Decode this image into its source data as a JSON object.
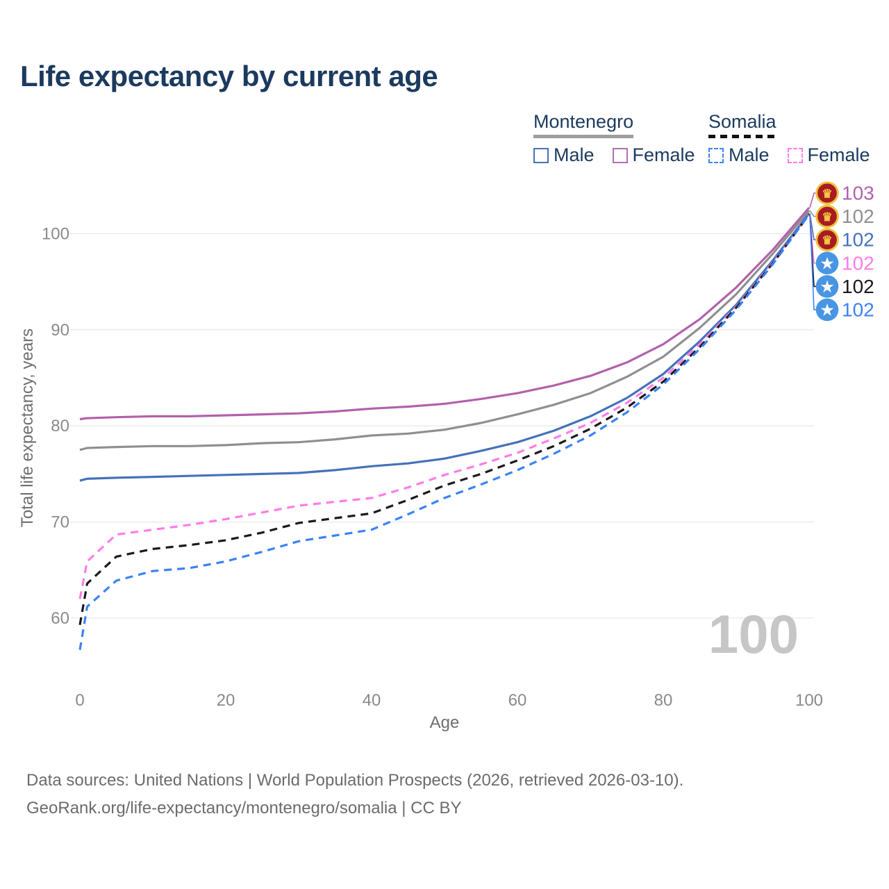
{
  "header": {
    "title": "Life expectancy by current age"
  },
  "legend": {
    "groups": [
      {
        "name": "Montenegro",
        "line_style": "solid",
        "underline_color": "#9e9e9e",
        "items": [
          {
            "label": "Male",
            "color": "#4472b8",
            "dashed": false
          },
          {
            "label": "Female",
            "color": "#b06fae",
            "dashed": false
          }
        ]
      },
      {
        "name": "Somalia",
        "line_style": "dashed",
        "underline_color": "#111111",
        "items": [
          {
            "label": "Male",
            "color": "#3b82f6",
            "dashed": true
          },
          {
            "label": "Female",
            "color": "#ff7ce8",
            "dashed": true
          }
        ]
      }
    ]
  },
  "flags": {
    "Montenegro": {
      "icon": "montenegro-flag-icon",
      "bg": "#a91b22",
      "ring": "#eec43d",
      "glyph": "♛",
      "glyph_color": "#f4c83f"
    },
    "Somalia": {
      "icon": "somalia-flag-icon",
      "bg": "#4896e3",
      "ring": "",
      "glyph": "★",
      "glyph_color": "#ffffff"
    }
  },
  "chart_data": {
    "type": "line",
    "title": "Life expectancy by current age",
    "xlabel": "Age",
    "ylabel": "Total life expectancy, years",
    "x_ticks": [
      0,
      20,
      40,
      60,
      80,
      100
    ],
    "y_ticks": [
      60,
      70,
      80,
      90,
      100
    ],
    "xlim": [
      0,
      100
    ],
    "ylim": [
      56,
      104
    ],
    "grid": "horizontal",
    "legend_position": "top-right",
    "age_counter": "100",
    "x": [
      0,
      1,
      5,
      10,
      15,
      20,
      25,
      30,
      35,
      40,
      45,
      50,
      55,
      60,
      65,
      70,
      75,
      80,
      85,
      90,
      95,
      100
    ],
    "series": [
      {
        "name": "Montenegro Female",
        "country": "Montenegro",
        "sex": "Female",
        "color": "#b261ab",
        "dashed": false,
        "end_label": "103",
        "values": [
          80.7,
          80.8,
          80.9,
          81.0,
          81.0,
          81.1,
          81.2,
          81.3,
          81.5,
          81.8,
          82.0,
          82.3,
          82.8,
          83.4,
          84.2,
          85.2,
          86.6,
          88.5,
          91.1,
          94.4,
          98.3,
          102.7
        ]
      },
      {
        "name": "Montenegro Both sexes",
        "country": "Montenegro",
        "sex": "All",
        "color": "#8f8f8f",
        "dashed": false,
        "end_label": "102",
        "values": [
          77.5,
          77.7,
          77.8,
          77.9,
          77.9,
          78.0,
          78.2,
          78.3,
          78.6,
          79.0,
          79.2,
          79.6,
          80.3,
          81.2,
          82.2,
          83.4,
          85.1,
          87.2,
          90.2,
          93.7,
          97.9,
          102.4
        ]
      },
      {
        "name": "Montenegro Male",
        "country": "Montenegro",
        "sex": "Male",
        "color": "#4472b8",
        "dashed": false,
        "end_label": "102",
        "values": [
          74.3,
          74.5,
          74.6,
          74.7,
          74.8,
          74.9,
          75.0,
          75.1,
          75.4,
          75.8,
          76.1,
          76.6,
          77.4,
          78.3,
          79.5,
          81.0,
          82.9,
          85.4,
          88.8,
          92.6,
          97.2,
          102.1
        ]
      },
      {
        "name": "Somalia Female",
        "country": "Somalia",
        "sex": "Female",
        "color": "#ff7ce8",
        "dashed": true,
        "end_label": "102",
        "values": [
          62.0,
          65.9,
          68.7,
          69.2,
          69.7,
          70.3,
          71.0,
          71.7,
          72.1,
          72.5,
          73.6,
          74.9,
          76.0,
          77.2,
          78.7,
          80.3,
          82.4,
          85.0,
          88.5,
          92.4,
          97.0,
          102.0
        ]
      },
      {
        "name": "Somalia Both sexes",
        "country": "Somalia",
        "sex": "All",
        "color": "#1a1a1a",
        "dashed": true,
        "end_label": "102",
        "values": [
          59.3,
          63.6,
          66.4,
          67.2,
          67.6,
          68.1,
          68.9,
          69.9,
          70.4,
          70.9,
          72.3,
          73.8,
          75.0,
          76.4,
          77.9,
          79.7,
          81.9,
          84.6,
          88.2,
          92.3,
          96.9,
          102.0
        ]
      },
      {
        "name": "Somalia Male",
        "country": "Somalia",
        "sex": "Male",
        "color": "#3b82f6",
        "dashed": true,
        "end_label": "102",
        "values": [
          56.7,
          61.2,
          63.9,
          64.9,
          65.2,
          65.9,
          66.9,
          68.0,
          68.6,
          69.2,
          70.8,
          72.5,
          73.9,
          75.4,
          77.1,
          79.0,
          81.4,
          84.3,
          88.0,
          92.1,
          96.8,
          102.0
        ]
      }
    ]
  },
  "footer": {
    "line1": "Data sources: United Nations | World Population Prospects (2026, retrieved 2026-03-10).",
    "line2": "GeoRank.org/life-expectancy/montenegro/somalia | CC BY"
  },
  "colors": {
    "title": "#1b3a5e",
    "axis_text": "#8a8a8a",
    "axis_title": "#6e6e6e",
    "gridline": "#e9e9e9",
    "watermark": "#c6c6c6",
    "footer_text": "#6b6b6b"
  }
}
